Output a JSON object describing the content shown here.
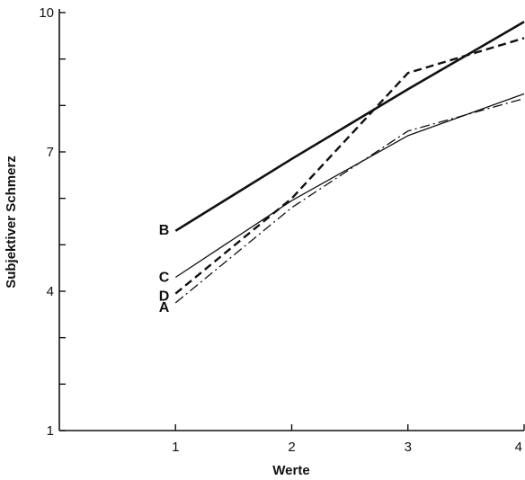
{
  "chart_data": {
    "type": "line",
    "xlabel": "Werte",
    "ylabel": "Subjektiver Schmerz",
    "x": [
      1,
      2,
      3,
      4
    ],
    "xlim": [
      0,
      4
    ],
    "ylim": [
      1,
      10
    ],
    "x_ticks": [
      1,
      2,
      3,
      4
    ],
    "x_tick_labels": [
      "1",
      "2",
      "3",
      "4"
    ],
    "y_ticks": [
      1,
      2,
      3,
      4,
      5,
      6,
      7,
      8,
      9,
      10
    ],
    "y_tick_labels": [
      "1",
      "",
      "",
      "4",
      "",
      "",
      "7",
      "",
      "",
      "10"
    ],
    "grid": false,
    "legend": "none",
    "series": [
      {
        "name": "B",
        "values": [
          5.3,
          6.85,
          8.35,
          9.8
        ],
        "line_style": "solid-thick",
        "color": "#111111"
      },
      {
        "name": "C",
        "values": [
          4.3,
          5.95,
          7.35,
          8.25
        ],
        "line_style": "solid-thin",
        "color": "#111111"
      },
      {
        "name": "D",
        "values": [
          3.95,
          6.0,
          8.7,
          9.45
        ],
        "line_style": "dashed",
        "color": "#111111"
      },
      {
        "name": "A",
        "values": [
          3.75,
          5.8,
          7.45,
          8.15
        ],
        "line_style": "dash-dot",
        "color": "#111111"
      }
    ]
  }
}
